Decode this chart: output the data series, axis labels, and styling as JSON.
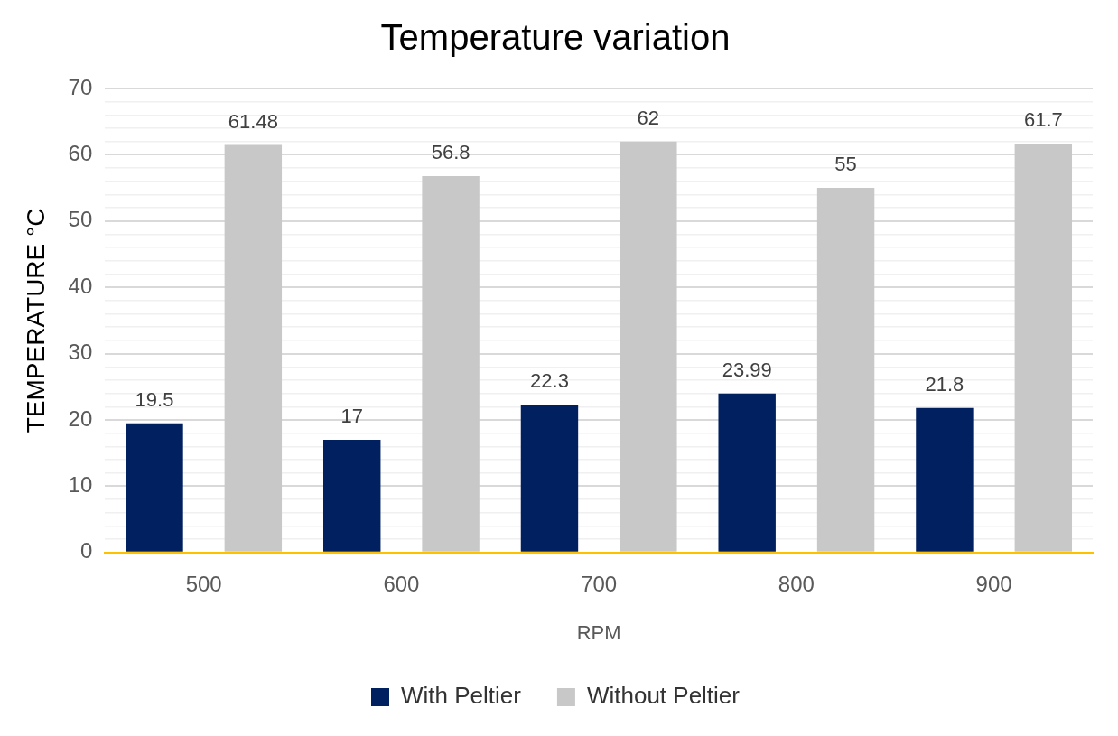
{
  "chart_data": {
    "type": "bar",
    "title": "Temperature variation",
    "xlabel": "RPM",
    "ylabel": "TEMPERATURE °C",
    "categories": [
      "500",
      "600",
      "700",
      "800",
      "900"
    ],
    "series": [
      {
        "name": "With Peltier",
        "color": "#002060",
        "values": [
          19.5,
          17,
          22.3,
          23.99,
          21.8
        ]
      },
      {
        "name": "Without Peltier",
        "color": "#c8c8c8",
        "values": [
          61.48,
          56.8,
          62,
          55,
          61.7
        ]
      }
    ],
    "ylim": [
      0,
      70
    ],
    "yticks": [
      0,
      {
        "value": 2,
        "label": null
      },
      {
        "value": 4,
        "label": null
      },
      {
        "value": 6,
        "label": null
      },
      {
        "value": 8,
        "label": null
      },
      10,
      {
        "value": 12,
        "label": null
      },
      {
        "value": 14,
        "label": null
      },
      {
        "value": 16,
        "label": null
      },
      {
        "value": 18,
        "label": null
      },
      20,
      {
        "value": 22,
        "label": null
      },
      {
        "value": 24,
        "label": null
      },
      {
        "value": 26,
        "label": null
      },
      {
        "value": 28,
        "label": null
      },
      30,
      {
        "value": 32,
        "label": null
      },
      {
        "value": 34,
        "label": null
      },
      {
        "value": 36,
        "label": null
      },
      {
        "value": 38,
        "label": null
      },
      40,
      {
        "value": 42,
        "label": null
      },
      {
        "value": 44,
        "label": null
      },
      {
        "value": 46,
        "label": null
      },
      {
        "value": 48,
        "label": null
      },
      50,
      {
        "value": 52,
        "label": null
      },
      {
        "value": 54,
        "label": null
      },
      {
        "value": 56,
        "label": null
      },
      {
        "value": 58,
        "label": null
      },
      60,
      {
        "value": 62,
        "label": null
      },
      {
        "value": 64,
        "label": null
      },
      {
        "value": 66,
        "label": null
      },
      {
        "value": 68,
        "label": null
      },
      70
    ],
    "grid": "y",
    "legend": "bottom",
    "data_labels": true
  }
}
